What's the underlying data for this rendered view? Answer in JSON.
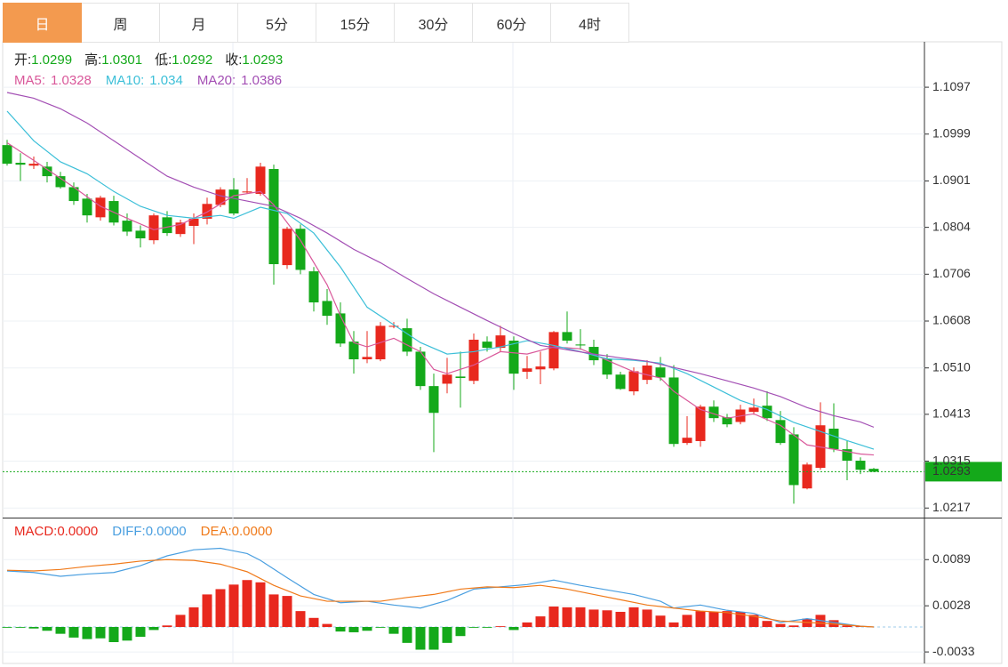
{
  "tabs": {
    "items": [
      "日",
      "周",
      "月",
      "5分",
      "15分",
      "30分",
      "60分",
      "4时"
    ],
    "active": 0
  },
  "chart_data": [
    {
      "type": "candlestick",
      "ohlc_labels": [
        "开:",
        "高:",
        "低:",
        "收:"
      ],
      "up_color": "#e8281e",
      "down_color": "#14a91a",
      "open": [
        1.0976,
        1.0939,
        1.0933,
        1.0931,
        1.0911,
        1.0888,
        1.0864,
        1.0825,
        1.0859,
        1.0818,
        1.0797,
        1.0777,
        1.0825,
        1.079,
        1.0807,
        1.0822,
        1.0851,
        1.0883,
        1.0877,
        1.0874,
        1.0926,
        1.0725,
        1.0801,
        1.0712,
        1.065,
        1.0624,
        1.0565,
        1.0528,
        1.0528,
        1.0596,
        1.0593,
        1.0544,
        1.0472,
        1.0477,
        1.0492,
        1.0483,
        1.0565,
        1.0552,
        1.0567,
        1.0502,
        1.0507,
        1.0509,
        1.0585,
        1.0559,
        1.0554,
        1.0529,
        1.0496,
        1.0461,
        1.0485,
        1.0511,
        1.049,
        1.0353,
        1.0357,
        1.0429,
        1.0407,
        1.0397,
        1.0418,
        1.0431,
        1.0401,
        1.0371,
        1.0258,
        1.0301,
        1.0383,
        1.034,
        1.0316,
        1.0299
      ],
      "high": [
        1.0987,
        1.0959,
        1.0952,
        1.0941,
        1.092,
        1.0898,
        1.0874,
        1.087,
        1.087,
        1.0833,
        1.0808,
        1.0833,
        1.0838,
        1.082,
        1.0833,
        1.0866,
        1.0888,
        1.0907,
        1.0907,
        1.0939,
        1.0935,
        1.0805,
        1.081,
        1.0721,
        1.0675,
        1.0647,
        1.0587,
        1.0587,
        1.0606,
        1.0606,
        1.0613,
        1.0554,
        1.0498,
        1.0531,
        1.0544,
        1.0582,
        1.0576,
        1.0598,
        1.0576,
        1.0535,
        1.0544,
        1.0587,
        1.0628,
        1.0591,
        1.0569,
        1.0539,
        1.0502,
        1.0511,
        1.0526,
        1.0533,
        1.0516,
        1.0409,
        1.0433,
        1.0442,
        1.0414,
        1.0433,
        1.0446,
        1.0461,
        1.042,
        1.0386,
        1.0312,
        1.0438,
        1.0436,
        1.0358,
        1.0323,
        1.0301
      ],
      "low": [
        1.0933,
        1.0901,
        1.0926,
        1.0898,
        1.0885,
        1.0851,
        1.0814,
        1.0818,
        1.0808,
        1.0786,
        1.0762,
        1.0769,
        1.0786,
        1.0784,
        1.0769,
        1.081,
        1.0846,
        1.0829,
        1.0874,
        1.087,
        1.0684,
        1.0717,
        1.0706,
        1.0628,
        1.06,
        1.0554,
        1.0498,
        1.052,
        1.0524,
        1.0593,
        1.0535,
        1.0464,
        1.0334,
        1.0457,
        1.0427,
        1.0476,
        1.0544,
        1.0544,
        1.0464,
        1.0487,
        1.0476,
        1.0505,
        1.0561,
        1.0548,
        1.0516,
        1.0487,
        1.0464,
        1.0453,
        1.0476,
        1.0483,
        1.0345,
        1.0349,
        1.0345,
        1.0397,
        1.0386,
        1.0392,
        1.0412,
        1.0399,
        1.0349,
        1.0226,
        1.0256,
        1.0297,
        1.0334,
        1.0275,
        1.0288,
        1.0292
      ],
      "close": [
        1.0937,
        1.0935,
        1.0937,
        1.0911,
        1.0888,
        1.0859,
        1.0829,
        1.0866,
        1.0814,
        1.0795,
        1.0781,
        1.0829,
        1.0792,
        1.0814,
        1.0822,
        1.0853,
        1.0883,
        1.0833,
        1.0879,
        1.0931,
        1.0727,
        1.0801,
        1.0715,
        1.0647,
        1.0619,
        1.0561,
        1.0528,
        1.0533,
        1.0598,
        1.0598,
        1.0544,
        1.0472,
        1.0416,
        1.0496,
        1.0489,
        1.0569,
        1.0552,
        1.0578,
        1.0498,
        1.0509,
        1.0513,
        1.0585,
        1.0567,
        1.0557,
        1.0526,
        1.0496,
        1.0466,
        1.0503,
        1.0515,
        1.049,
        1.0351,
        1.0364,
        1.0429,
        1.0405,
        1.0392,
        1.0423,
        1.0427,
        1.0405,
        1.0353,
        1.0265,
        1.0308,
        1.039,
        1.034,
        1.0316,
        1.0297,
        1.0293
      ],
      "ylim": [
        1.0197,
        1.1192
      ],
      "yticks": [
        1.1097,
        1.0999,
        1.0901,
        1.0804,
        1.0706,
        1.0608,
        {
          "value": 1.051,
          "label": "1.0510"
        },
        1.0413,
        1.0315,
        1.0217
      ],
      "grid": true,
      "series": [
        {
          "name": "MA5:",
          "current": 1.0328,
          "color": "#d9589a",
          "x": [
            0,
            2,
            5,
            7,
            9,
            11,
            13,
            15,
            17,
            19,
            20,
            22,
            24,
            25,
            26,
            27,
            29,
            31,
            32,
            33,
            35,
            37,
            39,
            41,
            43,
            45,
            47,
            49,
            50,
            52,
            54,
            56,
            58,
            60,
            62,
            64,
            65
          ],
          "values": [
            1.0981,
            1.0944,
            1.0888,
            1.0848,
            1.0823,
            1.0799,
            1.081,
            1.0836,
            1.087,
            1.0879,
            1.0851,
            1.0777,
            1.0684,
            1.0619,
            1.0563,
            1.0554,
            1.0572,
            1.0544,
            1.0507,
            1.0498,
            1.0516,
            1.0544,
            1.0539,
            1.0554,
            1.055,
            1.0526,
            1.0502,
            1.0489,
            1.0461,
            1.0423,
            1.0405,
            1.0414,
            1.039,
            1.0349,
            1.034,
            1.033,
            1.0328
          ]
        },
        {
          "name": "MA10:",
          "current": 1.034,
          "color": "#3cbfd8",
          "x": [
            0,
            2,
            4,
            6,
            8,
            10,
            12,
            14,
            16,
            17,
            19,
            21,
            23,
            25,
            27,
            29,
            31,
            33,
            35,
            37,
            39,
            41,
            43,
            45,
            47,
            49,
            51,
            53,
            55,
            57,
            59,
            61,
            63,
            65
          ],
          "values": [
            1.1047,
            1.0985,
            1.0941,
            1.0916,
            1.0879,
            1.0848,
            1.0829,
            1.0823,
            1.0829,
            1.0823,
            1.0846,
            1.0833,
            1.0792,
            1.0721,
            1.0637,
            1.06,
            1.0563,
            1.0539,
            1.0544,
            1.0554,
            1.0567,
            1.0557,
            1.0544,
            1.0529,
            1.0526,
            1.052,
            1.0498,
            1.047,
            1.0442,
            1.0423,
            1.0396,
            1.0377,
            1.0358,
            1.034
          ]
        },
        {
          "name": "MA20:",
          "current": 1.0386,
          "color": "#a34fb4",
          "x": [
            0,
            2,
            4,
            6,
            8,
            10,
            12,
            14,
            16,
            18,
            20,
            22,
            24,
            26,
            28,
            30,
            32,
            34,
            36,
            38,
            40,
            42,
            44,
            46,
            48,
            50,
            52,
            54,
            56,
            58,
            60,
            62,
            64,
            65
          ],
          "values": [
            1.1086,
            1.1074,
            1.1052,
            1.1022,
            1.0985,
            1.0948,
            1.0911,
            1.0888,
            1.087,
            1.0859,
            1.0848,
            1.0823,
            1.0792,
            1.0758,
            1.073,
            1.0697,
            1.0665,
            1.0637,
            1.0609,
            1.0582,
            1.0557,
            1.0548,
            1.0539,
            1.0531,
            1.0524,
            1.0511,
            1.0498,
            1.0483,
            1.0468,
            1.045,
            1.0427,
            1.041,
            1.0397,
            1.0386
          ]
        }
      ]
    },
    {
      "type": "macd",
      "ylim": [
        -0.0047,
        0.0141
      ],
      "yticks": [
        0.0089,
        0.0028,
        -0.0033
      ],
      "histogram": {
        "name": "MACD:",
        "current": {
          "value": 0,
          "label": "0.0000"
        },
        "up_color": "#e8281e",
        "down_color": "#14a91a",
        "values": [
          -0.0001,
          -0.0001,
          -0.0002,
          -0.0005,
          -0.0009,
          -0.0014,
          -0.0016,
          -0.0015,
          -0.002,
          -0.0018,
          -0.0013,
          -0.0004,
          0.0002,
          0.0016,
          0.0026,
          0.0043,
          0.005,
          0.0056,
          0.0062,
          0.0059,
          0.0043,
          0.0041,
          0.0021,
          0.0012,
          0.0004,
          -0.0006,
          -0.0007,
          -0.0005,
          -0.0001,
          -0.0009,
          -0.0021,
          -0.003,
          -0.003,
          -0.0021,
          -0.0012,
          -0.0001,
          -0.0001,
          0.0001,
          -0.0004,
          0.0006,
          0.0014,
          0.0027,
          0.0026,
          0.0026,
          0.0023,
          0.0022,
          0.002,
          0.0026,
          0.0023,
          0.0015,
          0.0006,
          0.0016,
          0.0021,
          0.002,
          0.0021,
          0.002,
          0.0016,
          0.0008,
          0.0004,
          0.0002,
          0.0011,
          0.0016,
          0.0009,
          0.0002,
          0.0001,
          0
        ]
      },
      "series": [
        {
          "name": "DIFF:",
          "current": {
            "value": 0,
            "label": "0.0000"
          },
          "color": "#4a9fe0",
          "x": [
            0,
            2,
            4,
            6,
            8,
            10,
            12,
            14,
            16,
            18,
            19,
            21,
            23,
            25,
            27,
            29,
            31,
            33,
            35,
            37,
            39,
            41,
            43,
            45,
            47,
            49,
            50,
            52,
            54,
            56,
            58,
            60,
            62,
            64,
            65
          ],
          "values": [
            0.0074,
            0.0072,
            0.0067,
            0.007,
            0.0072,
            0.0081,
            0.0094,
            0.0102,
            0.0104,
            0.0097,
            0.0088,
            0.0065,
            0.0043,
            0.0032,
            0.0034,
            0.0029,
            0.0025,
            0.0035,
            0.005,
            0.0053,
            0.0056,
            0.0062,
            0.0055,
            0.0049,
            0.0043,
            0.0034,
            0.0025,
            0.0029,
            0.0022,
            0.0018,
            0.0006,
            0.0011,
            0.0006,
            0.0001,
            0
          ]
        },
        {
          "name": "DEA:",
          "current": {
            "value": 0,
            "label": "0.0000"
          },
          "color": "#f07a1a",
          "x": [
            0,
            2,
            4,
            6,
            8,
            10,
            12,
            14,
            16,
            18,
            20,
            22,
            24,
            26,
            28,
            30,
            32,
            34,
            36,
            38,
            40,
            42,
            44,
            46,
            48,
            50,
            52,
            54,
            56,
            58,
            60,
            62,
            64,
            65
          ],
          "values": [
            0.0075,
            0.0074,
            0.0076,
            0.008,
            0.0083,
            0.0087,
            0.0089,
            0.0088,
            0.0083,
            0.0073,
            0.0055,
            0.0041,
            0.0034,
            0.0034,
            0.0034,
            0.0039,
            0.0043,
            0.005,
            0.0053,
            0.0052,
            0.0055,
            0.005,
            0.0043,
            0.0036,
            0.0029,
            0.0025,
            0.0021,
            0.0019,
            0.0014,
            0.0008,
            0.0006,
            0.0004,
            0.0001,
            0
          ]
        }
      ]
    }
  ]
}
